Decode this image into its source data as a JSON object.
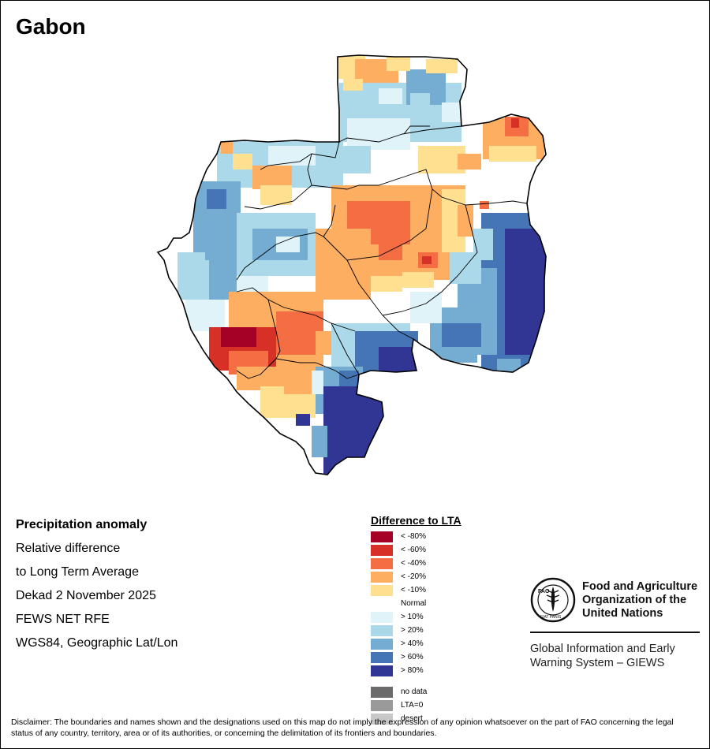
{
  "map": {
    "title": "Gabon"
  },
  "info_panel": {
    "heading": "Precipitation anomaly",
    "line1": "Relative difference",
    "line2": "to Long Term Average",
    "period": "Dekad 2 November 2025",
    "source": "FEWS NET RFE",
    "projection": "WGS84, Geographic Lat/Lon"
  },
  "legend": {
    "title": "Difference to LTA",
    "items": [
      {
        "label": "< -80%",
        "color": "#a50026"
      },
      {
        "label": "< -60%",
        "color": "#d73027"
      },
      {
        "label": "< -40%",
        "color": "#f46d43"
      },
      {
        "label": "< -20%",
        "color": "#fdae61"
      },
      {
        "label": "< -10%",
        "color": "#fee090"
      },
      {
        "label": "Normal",
        "color": "#ffffff"
      },
      {
        "label": "> 10%",
        "color": "#e0f3f8"
      },
      {
        "label": "> 20%",
        "color": "#abd9e9"
      },
      {
        "label": "> 40%",
        "color": "#74add1"
      },
      {
        "label": "> 60%",
        "color": "#4575b4"
      },
      {
        "label": "> 80%",
        "color": "#313695"
      }
    ],
    "extra_items": [
      {
        "label": "no data",
        "color": "#6b6b6b"
      },
      {
        "label": "LTA=0",
        "color": "#9a9a9a"
      },
      {
        "label": "desert",
        "color": "#c8c8c8"
      }
    ]
  },
  "organization": {
    "name_line1": "Food and Agriculture",
    "name_line2": "Organization of the",
    "name_line3": "United Nations",
    "system_line1": "Global Information and Early",
    "system_line2": "Warning System – GIEWS",
    "logo_text": "FAO",
    "logo_motto": "FIAT PANIS"
  },
  "disclaimer": "Disclaimer: The boundaries and names shown and the designations used on this map do not imply the expression of any opinion whatsoever on the part of FAO concerning the legal status of any country, territory, area or of its authorities, or concerning the delimitation of its frontiers and boundaries."
}
